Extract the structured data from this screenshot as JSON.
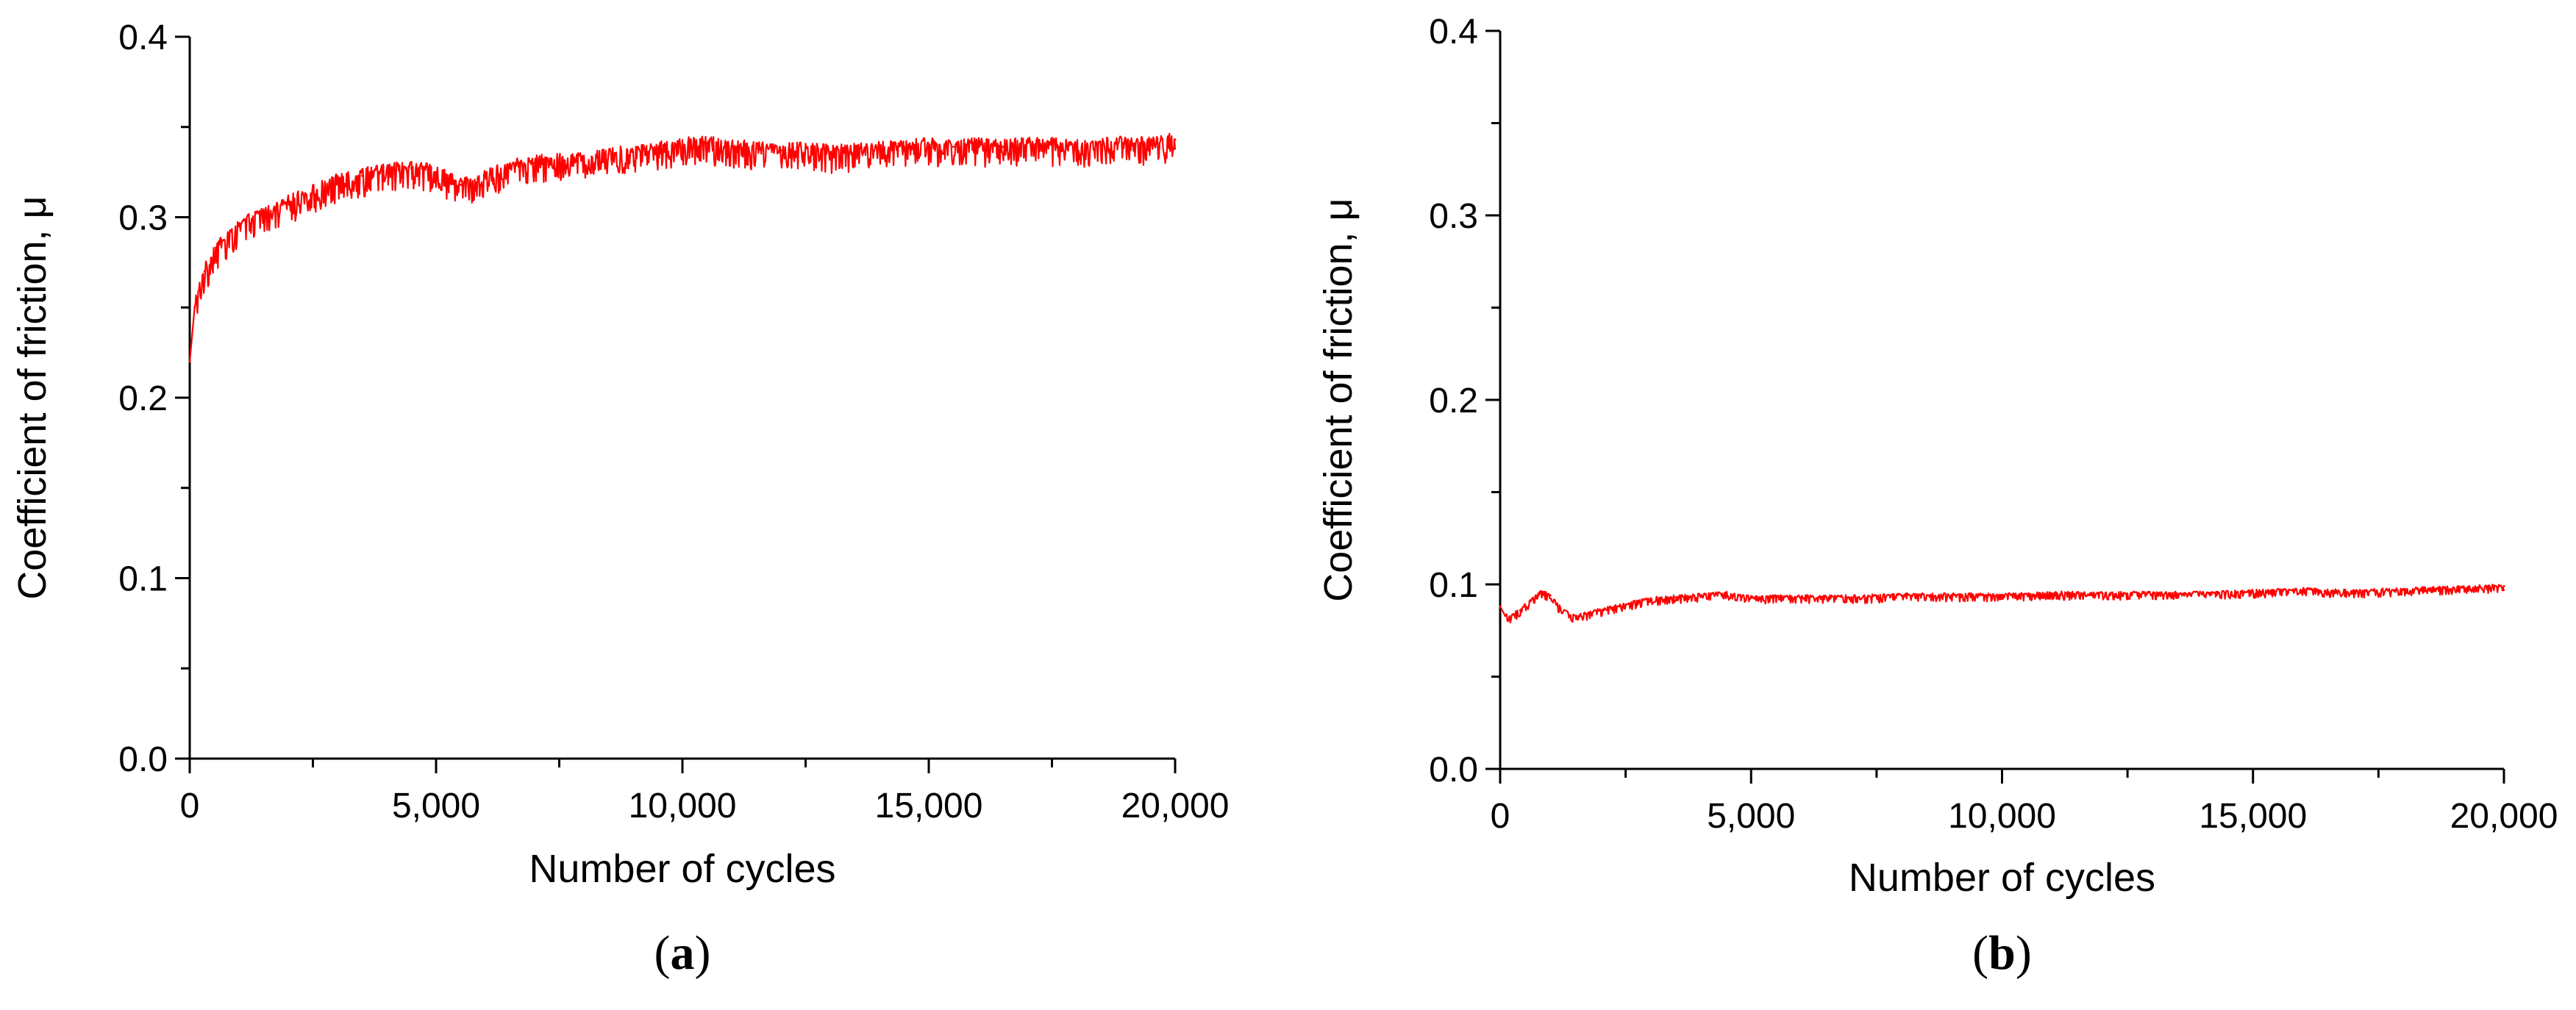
{
  "chart_data": [
    {
      "type": "line",
      "panel_label": "a",
      "xlabel": "Number of cycles",
      "ylabel": "Coefficient of friction, μ",
      "xlim": [
        0,
        20000
      ],
      "ylim": [
        0.0,
        0.4
      ],
      "x_ticks": [
        "0",
        "5,000",
        "10,000",
        "15,000",
        "20,000"
      ],
      "y_ticks": [
        "0.0",
        "0.1",
        "0.2",
        "0.3",
        "0.4"
      ],
      "grid": false,
      "series_color": "#ff0000",
      "series": [
        {
          "x": [
            0,
            100,
            300,
            600,
            1000,
            1500,
            2000,
            2500,
            3000,
            3500,
            4000,
            4500,
            5000,
            5500,
            6000,
            6500,
            7000,
            7500,
            8000,
            8500,
            9000,
            9500,
            10000,
            10500,
            11000,
            11500,
            12000,
            12500,
            13000,
            13500,
            14000,
            14500,
            15000,
            15500,
            16000,
            16500,
            17000,
            17500,
            18000,
            18500,
            19000,
            19500,
            20000
          ],
          "y": [
            0.22,
            0.25,
            0.27,
            0.285,
            0.295,
            0.302,
            0.308,
            0.314,
            0.32,
            0.323,
            0.326,
            0.327,
            0.325,
            0.318,
            0.322,
            0.328,
            0.33,
            0.332,
            0.333,
            0.335,
            0.336,
            0.338,
            0.34,
            0.341,
            0.339,
            0.338,
            0.337,
            0.338,
            0.336,
            0.337,
            0.338,
            0.339,
            0.34,
            0.339,
            0.34,
            0.339,
            0.341,
            0.34,
            0.339,
            0.34,
            0.341,
            0.34,
            0.343
          ]
        }
      ]
    },
    {
      "type": "line",
      "panel_label": "b",
      "xlabel": "Number of cycles",
      "ylabel": "Coefficient of friction, μ",
      "xlim": [
        0,
        20000
      ],
      "ylim": [
        0.0,
        0.4
      ],
      "x_ticks": [
        "0",
        "5,000",
        "10,000",
        "15,000",
        "20,000"
      ],
      "y_ticks": [
        "0.0",
        "0.1",
        "0.2",
        "0.3",
        "0.4"
      ],
      "grid": false,
      "series_color": "#ff0000",
      "series": [
        {
          "x": [
            0,
            100,
            200,
            400,
            600,
            800,
            1000,
            1200,
            1400,
            1600,
            2000,
            2500,
            3000,
            3500,
            4000,
            4500,
            5000,
            6000,
            7000,
            8000,
            9000,
            10000,
            11000,
            12000,
            13000,
            14000,
            15000,
            16000,
            17000,
            18000,
            19000,
            20000
          ],
          "y": [
            0.088,
            0.083,
            0.082,
            0.086,
            0.091,
            0.096,
            0.094,
            0.087,
            0.083,
            0.083,
            0.086,
            0.089,
            0.092,
            0.093,
            0.094,
            0.095,
            0.093,
            0.093,
            0.093,
            0.094,
            0.094,
            0.094,
            0.095,
            0.095,
            0.095,
            0.095,
            0.096,
            0.097,
            0.096,
            0.097,
            0.098,
            0.099
          ]
        }
      ]
    }
  ]
}
